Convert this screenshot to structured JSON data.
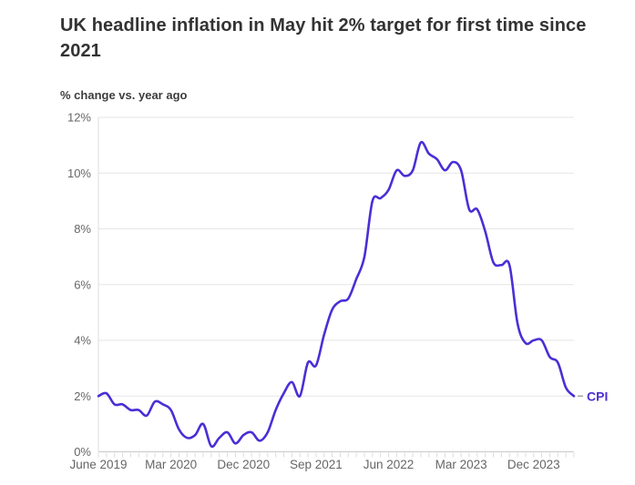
{
  "header": {
    "title": "UK headline inflation in May hit 2% target for first time since 2021",
    "subtitle": "% change vs. year ago"
  },
  "colors": {
    "line": "#4b2ed5",
    "line_label": "#4b2ed5",
    "grid": "#e6e6e6",
    "axis_bottom": "#c9c9c9",
    "axis_left": "#dedede",
    "month_tick": "#dcdcdc",
    "leader_dash": "#9e9e9e",
    "axis_text": "#666666",
    "title_text": "#333333"
  },
  "chart_data": {
    "type": "line",
    "title": "UK headline inflation in May hit 2% target for first time since 2021",
    "ylabel": "% change vs. year ago",
    "xlabel": "",
    "grid": "horizontal",
    "legend_position": "end-of-line",
    "ylim": [
      0,
      12
    ],
    "y_tick_labels": [
      "0%",
      "2%",
      "4%",
      "6%",
      "8%",
      "10%",
      "12%"
    ],
    "y_tick_values": [
      0,
      2,
      4,
      6,
      8,
      10,
      12
    ],
    "x_tick_labels": [
      "June 2019",
      "Mar 2020",
      "Dec 2020",
      "Sep 2021",
      "Jun 2022",
      "Mar 2023",
      "Dec 2023"
    ],
    "x_tick_month_indices": [
      0,
      9,
      18,
      27,
      36,
      45,
      54
    ],
    "x": [
      "Jun 2019",
      "Jul 2019",
      "Aug 2019",
      "Sep 2019",
      "Oct 2019",
      "Nov 2019",
      "Dec 2019",
      "Jan 2020",
      "Feb 2020",
      "Mar 2020",
      "Apr 2020",
      "May 2020",
      "Jun 2020",
      "Jul 2020",
      "Aug 2020",
      "Sep 2020",
      "Oct 2020",
      "Nov 2020",
      "Dec 2020",
      "Jan 2021",
      "Feb 2021",
      "Mar 2021",
      "Apr 2021",
      "May 2021",
      "Jun 2021",
      "Jul 2021",
      "Aug 2021",
      "Sep 2021",
      "Oct 2021",
      "Nov 2021",
      "Dec 2021",
      "Jan 2022",
      "Feb 2022",
      "Mar 2022",
      "Apr 2022",
      "May 2022",
      "Jun 2022",
      "Jul 2022",
      "Aug 2022",
      "Sep 2022",
      "Oct 2022",
      "Nov 2022",
      "Dec 2022",
      "Jan 2023",
      "Feb 2023",
      "Mar 2023",
      "Apr 2023",
      "May 2023",
      "Jun 2023",
      "Jul 2023",
      "Aug 2023",
      "Sep 2023",
      "Oct 2023",
      "Nov 2023",
      "Dec 2023",
      "Jan 2024",
      "Feb 2024",
      "Mar 2024",
      "Apr 2024",
      "May 2024"
    ],
    "series": [
      {
        "name": "CPI",
        "values": [
          2.0,
          2.1,
          1.7,
          1.7,
          1.5,
          1.5,
          1.3,
          1.8,
          1.7,
          1.5,
          0.8,
          0.5,
          0.6,
          1.0,
          0.2,
          0.5,
          0.7,
          0.3,
          0.6,
          0.7,
          0.4,
          0.7,
          1.5,
          2.1,
          2.5,
          2.0,
          3.2,
          3.1,
          4.2,
          5.1,
          5.4,
          5.5,
          6.2,
          7.0,
          9.0,
          9.1,
          9.4,
          10.1,
          9.9,
          10.1,
          11.1,
          10.7,
          10.5,
          10.1,
          10.4,
          10.1,
          8.7,
          8.7,
          7.9,
          6.8,
          6.7,
          6.7,
          4.6,
          3.9,
          4.0,
          4.0,
          3.4,
          3.2,
          2.3,
          2.0
        ]
      }
    ],
    "end_label": "CPI"
  }
}
